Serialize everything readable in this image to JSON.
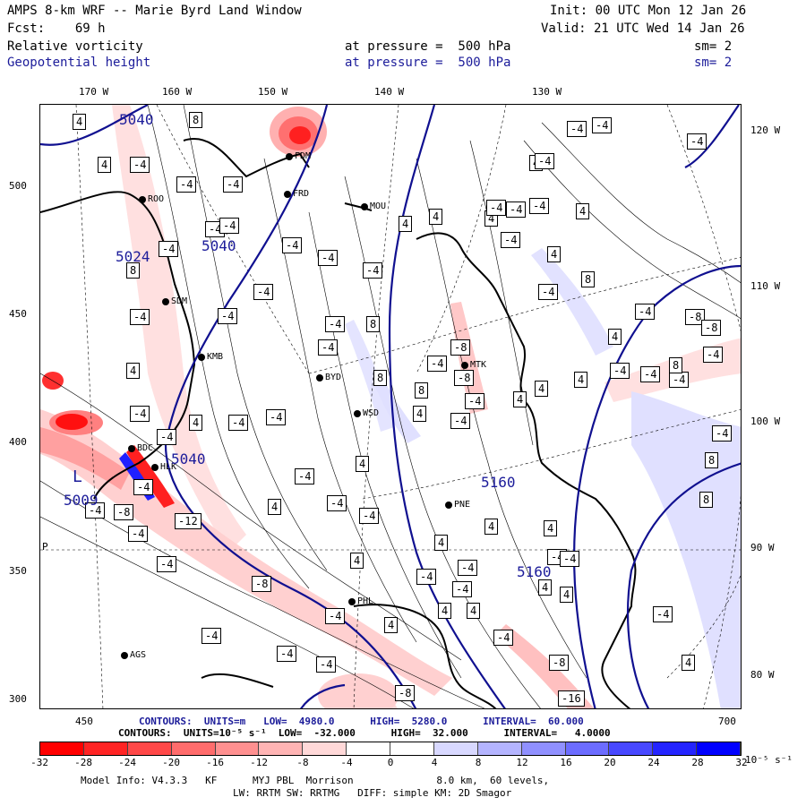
{
  "header": {
    "title": "AMPS 8-km WRF -- Marie Byrd Land Window",
    "init": "Init: 00 UTC Mon 12 Jan 26",
    "fcst": "Fcst:    69 h",
    "valid": "Valid: 21 UTC Wed 14 Jan 26",
    "field1": {
      "name": "Relative vorticity",
      "pressure": "at pressure =  500 hPa",
      "sm": "sm= 2"
    },
    "field2": {
      "name": "Geopotential height",
      "pressure": "at pressure =  500 hPa",
      "sm": "sm= 2"
    }
  },
  "axes": {
    "top_lon": [
      "170 W",
      "160 W",
      "150 W",
      "140 W",
      "130 W"
    ],
    "right_lon": [
      "120 W",
      "110 W",
      "100 W",
      "90 W",
      "80 W"
    ],
    "left_ticks": [
      "500",
      "450",
      "400",
      "350",
      "300"
    ],
    "bottom_ticks": [
      "450",
      "700"
    ]
  },
  "stations": [
    "ROO",
    "FDM",
    "FRD",
    "MOU",
    "SDM",
    "KMB",
    "BYD",
    "WSD",
    "MTK",
    "PNE",
    "PHL",
    "BDC",
    "HLK",
    "AGS"
  ],
  "map_labels": {
    "low_marker": "L",
    "low_value": "5009",
    "height_labels": [
      "5040",
      "5024",
      "5040",
      "5040",
      "5160",
      "5160"
    ],
    "pressure_marker": "P"
  },
  "vorticity_labels": [
    "4",
    "-4",
    "8",
    "-8",
    "-12",
    "-16"
  ],
  "footer": {
    "height_contours": "CONTOURS:  UNITS=m   LOW=  4980.0      HIGH=  5280.0      INTERVAL=  60.000",
    "vort_contours": "CONTOURS:  UNITS=10⁻⁵ s⁻¹  LOW=  -32.000      HIGH=  32.000      INTERVAL=   4.0000",
    "colorbar_ticks": [
      "-32",
      "-28",
      "-24",
      "-20",
      "-16",
      "-12",
      "-8",
      "-4",
      "0",
      "4",
      "8",
      "12",
      "16",
      "20",
      "24",
      "28",
      "32"
    ],
    "colorbar_unit": "10⁻⁵ s⁻¹",
    "model_info": "Model Info: V4.3.3   KF      MYJ PBL  Morrison              8.0 km,  60 levels,",
    "model_info2": "LW: RRTM SW: RRTMG   DIFF: simple KM: 2D Smagor"
  },
  "colors": {
    "red_strong": "#ff1010",
    "red_light": "#ffe0e0",
    "blue_light": "#e0e0ff",
    "blue_strong": "#1010ff",
    "height_contour": "#101090"
  }
}
